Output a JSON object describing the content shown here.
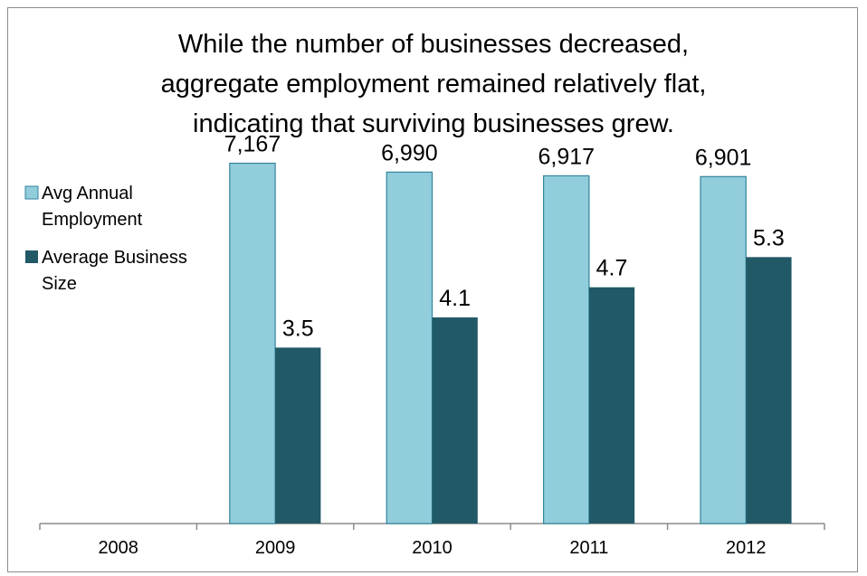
{
  "chart_data": {
    "type": "bar",
    "title_lines": [
      "While the number of businesses decreased,",
      "aggregate employment remained relatively flat,",
      "indicating that surviving businesses grew."
    ],
    "categories": [
      "2008",
      "2009",
      "2010",
      "2011",
      "2012"
    ],
    "series": [
      {
        "name_lines": [
          "Avg Annual",
          "Employment"
        ],
        "values": [
          null,
          7167,
          6990,
          6917,
          6901
        ],
        "labels": [
          "",
          "7,167",
          "6,990",
          "6,917",
          "6,901"
        ],
        "color": "#92cddc",
        "ylim": [
          0,
          10000
        ]
      },
      {
        "name_lines": [
          "Average Business",
          "Size"
        ],
        "values": [
          null,
          3.5,
          4.1,
          4.7,
          5.3
        ],
        "labels": [
          "",
          "3.5",
          "4.1",
          "4.7",
          "5.3"
        ],
        "color": "#215967",
        "ylim": [
          0,
          10
        ]
      }
    ],
    "legend_position": "left",
    "grid": false
  }
}
